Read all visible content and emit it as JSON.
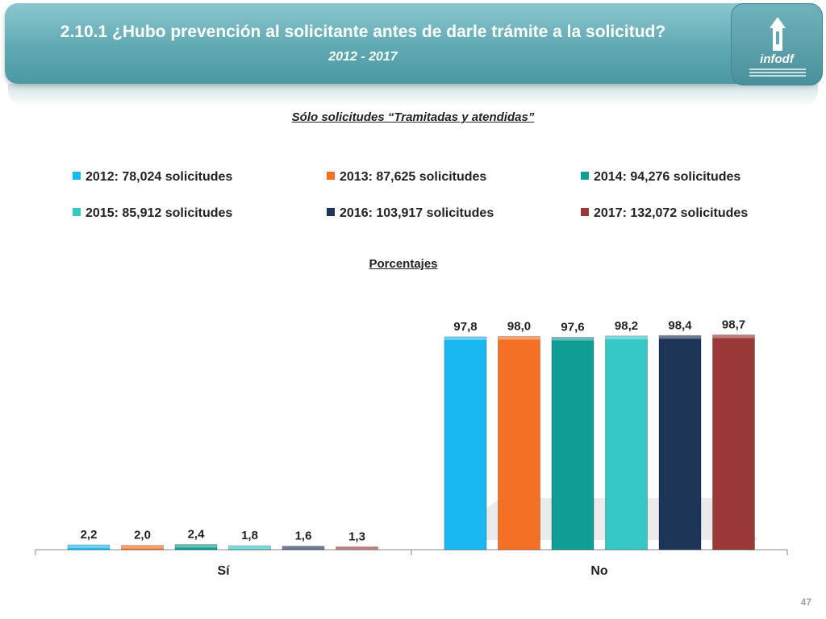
{
  "header": {
    "title": "2.10.1 ¿Hubo prevención al solicitante antes de darle trámite a la solicitud?",
    "subtitle": "2012 - 2017",
    "logo_text": "infodf"
  },
  "caption": "Sólo solicitudes “Tramitadas y atendidas”",
  "legend": [
    {
      "label": "2012: 78,024 solicitudes",
      "color": "#1ab8f0"
    },
    {
      "label": "2013: 87,625 solicitudes",
      "color": "#f47024"
    },
    {
      "label": "2014: 94,276 solicitudes",
      "color": "#0f9d96"
    },
    {
      "label": "2015: 85,912 solicitudes",
      "color": "#36c8c6"
    },
    {
      "label": "2016: 103,917 solicitudes",
      "color": "#1d3557"
    },
    {
      "label": "2017: 132,072 solicitudes",
      "color": "#9b3838"
    }
  ],
  "chart_data": {
    "type": "bar",
    "title": "Porcentajes",
    "categories": [
      "Sí",
      "No"
    ],
    "ylim": [
      0,
      100
    ],
    "series": [
      {
        "name": "2012: 78,024 solicitudes",
        "values": [
          2.2,
          97.8
        ],
        "labels": [
          "2,2",
          "97,8"
        ],
        "color": "#1ab8f0"
      },
      {
        "name": "2013: 87,625 solicitudes",
        "values": [
          2.0,
          98.0
        ],
        "labels": [
          "2,0",
          "98,0"
        ],
        "color": "#f47024"
      },
      {
        "name": "2014: 94,276 solicitudes",
        "values": [
          2.4,
          97.6
        ],
        "labels": [
          "2,4",
          "97,6"
        ],
        "color": "#0f9d96"
      },
      {
        "name": "2015: 85,912 solicitudes",
        "values": [
          1.8,
          98.2
        ],
        "labels": [
          "1,8",
          "98,2"
        ],
        "color": "#36c8c6"
      },
      {
        "name": "2016: 103,917 solicitudes",
        "values": [
          1.6,
          98.4
        ],
        "labels": [
          "1,6",
          "98,4"
        ],
        "color": "#1d3557"
      },
      {
        "name": "2017: 132,072 solicitudes",
        "values": [
          1.3,
          98.7
        ],
        "labels": [
          "1,3",
          "98,7"
        ],
        "color": "#9b3838"
      }
    ]
  },
  "page_number": "47"
}
